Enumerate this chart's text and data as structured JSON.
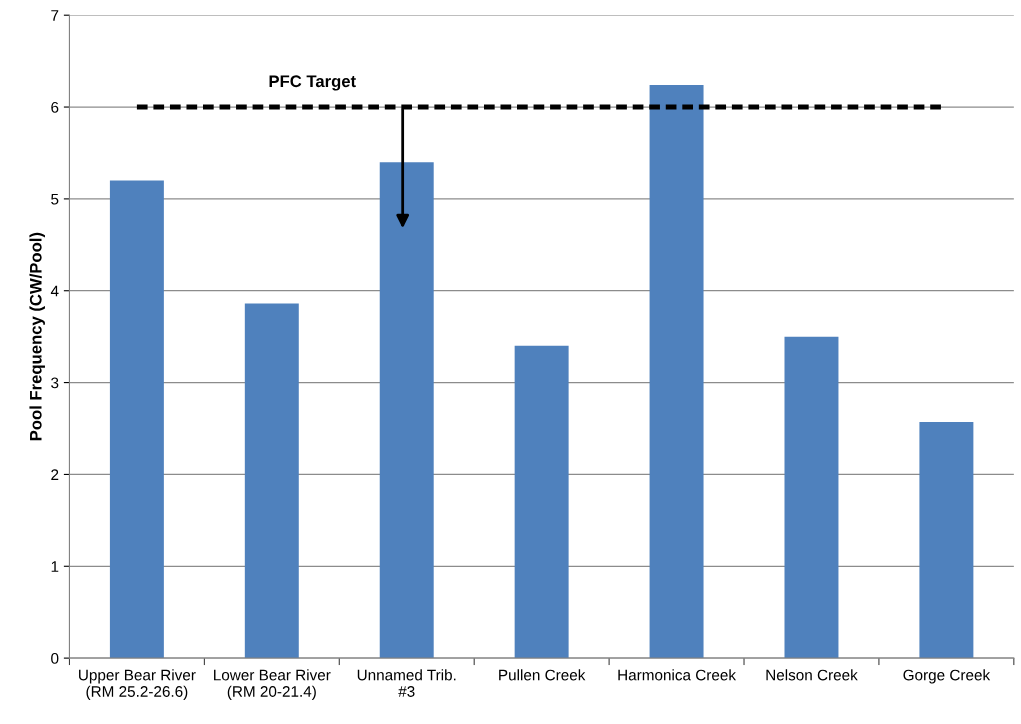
{
  "chart_data": {
    "type": "bar",
    "ylabel": "Pool Frequency (CW/Pool)",
    "categories": [
      "Upper Bear River\n(RM 25.2-26.6)",
      "Lower Bear River\n(RM 20-21.4)",
      "Unnamed Trib.\n#3",
      "Pullen Creek",
      "Harmonica Creek",
      "Nelson Creek",
      "Gorge Creek"
    ],
    "values": [
      5.2,
      3.86,
      5.4,
      3.4,
      6.24,
      3.5,
      2.57
    ],
    "color": "#4f81bd",
    "ylim": [
      0,
      7
    ],
    "yticks": [
      0,
      1,
      2,
      3,
      4,
      5,
      6,
      7
    ],
    "grid": "y",
    "ref_lines": [
      {
        "axis": "y",
        "value": 6,
        "label": "PFC Target",
        "color": "#000000",
        "line_style": "dashed"
      }
    ]
  }
}
